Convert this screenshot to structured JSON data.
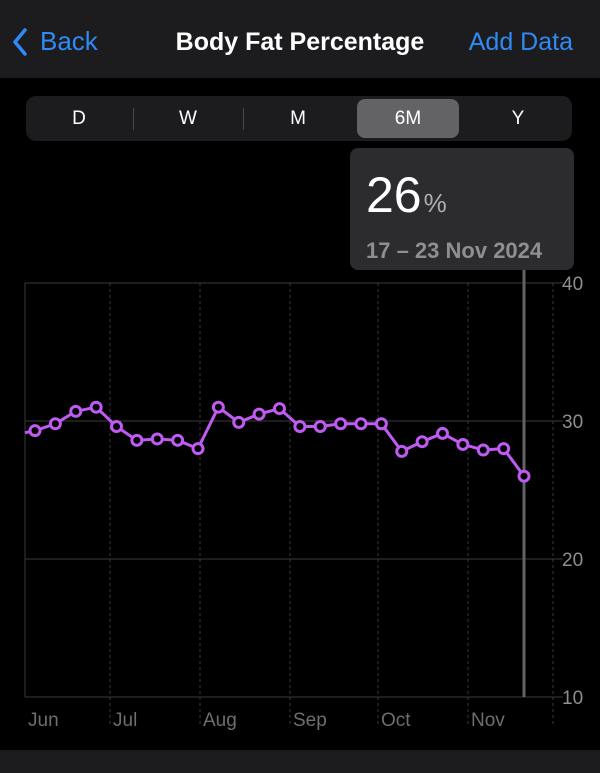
{
  "nav": {
    "back_label": "Back",
    "title": "Body Fat Percentage",
    "add_label": "Add Data"
  },
  "segments": [
    {
      "label": "D",
      "selected": false
    },
    {
      "label": "W",
      "selected": false
    },
    {
      "label": "M",
      "selected": false
    },
    {
      "label": "6M",
      "selected": true
    },
    {
      "label": "Y",
      "selected": false
    }
  ],
  "selection": {
    "value": "26",
    "unit": "%",
    "date_range": "17 – 23 Nov 2024"
  },
  "colors": {
    "accent": "#2f8af5",
    "series": "#bf5af2"
  },
  "chart_data": {
    "type": "line",
    "x_tick_labels": [
      "Jun",
      "Jul",
      "Aug",
      "Sep",
      "Oct",
      "Nov"
    ],
    "y_ticks": [
      10,
      20,
      30,
      40
    ],
    "ylim": [
      10,
      40
    ],
    "grid": true,
    "y_axis_position": "right",
    "series": [
      {
        "values": [
          29.3,
          29.8,
          30.7,
          31.0,
          29.6,
          28.6,
          28.7,
          28.6,
          28.0,
          31.0,
          29.9,
          30.5,
          30.9,
          29.6,
          29.6,
          29.8,
          29.8,
          29.8,
          27.8,
          28.5,
          29.1,
          28.3,
          27.9,
          28.0,
          26.0
        ]
      }
    ],
    "selected_index": 24
  }
}
